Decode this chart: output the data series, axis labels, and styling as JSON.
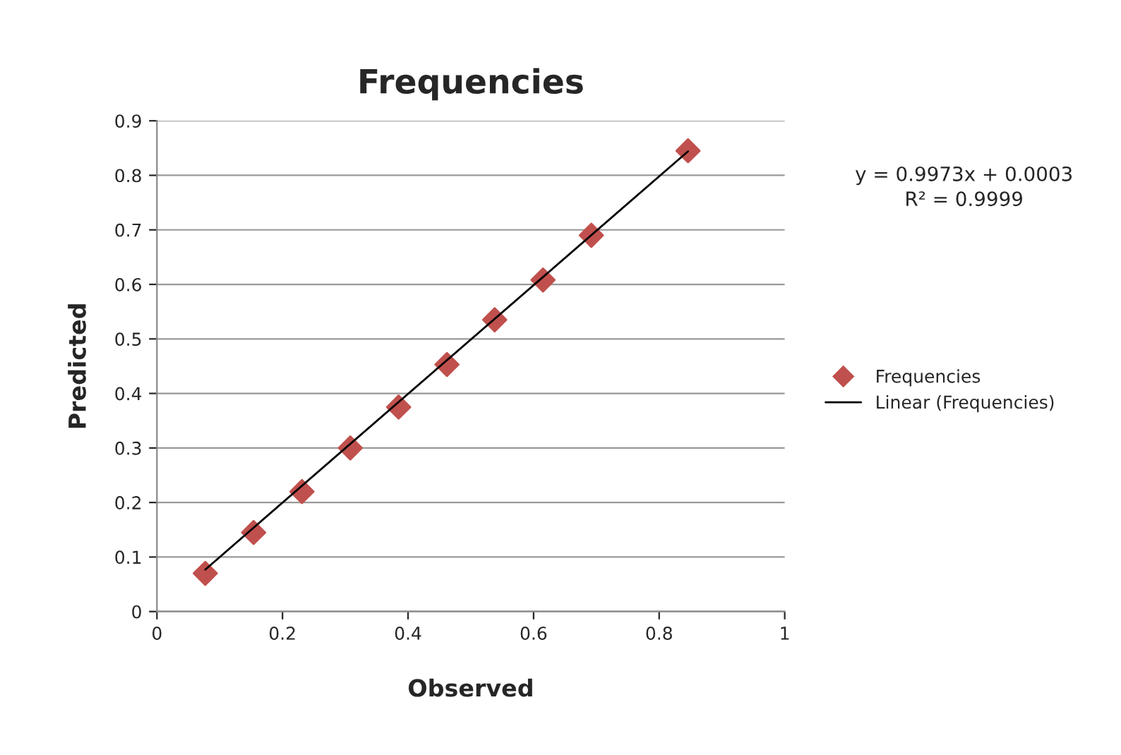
{
  "chart_data": {
    "type": "scatter",
    "title": "Frequencies",
    "xlabel": "Observed",
    "ylabel": "Predicted",
    "xlim": [
      0,
      1
    ],
    "xticks": [
      0,
      0.2,
      0.4,
      0.6,
      0.8,
      1
    ],
    "ylim": [
      0,
      0.9
    ],
    "yticks": [
      0,
      0.1,
      0.2,
      0.3,
      0.4,
      0.5,
      0.6,
      0.7,
      0.8,
      0.9
    ],
    "grid": "y",
    "legend": "right",
    "annotations": [
      "y = 0.9973x + 0.0003",
      "R² = 0.9999"
    ],
    "series": [
      {
        "name": "Frequencies",
        "marker": "diamond",
        "color": "#c0504d",
        "x": [
          0.077,
          0.154,
          0.231,
          0.308,
          0.385,
          0.462,
          0.538,
          0.615,
          0.692,
          0.846
        ],
        "values": [
          0.07,
          0.145,
          0.22,
          0.3,
          0.375,
          0.453,
          0.535,
          0.608,
          0.69,
          0.845
        ]
      },
      {
        "name": "Linear (Frequencies)",
        "type": "line",
        "color": "#000000",
        "line_style": "solid",
        "marker": "none",
        "x": [
          0.077,
          0.846
        ],
        "values": [
          0.077,
          0.844
        ]
      }
    ]
  }
}
